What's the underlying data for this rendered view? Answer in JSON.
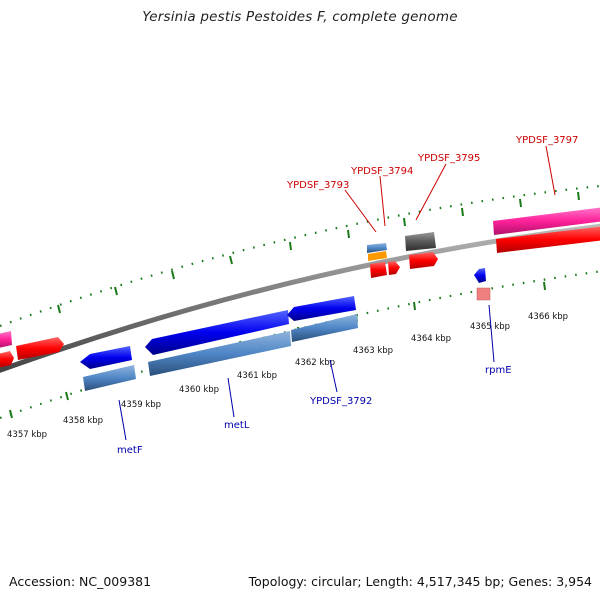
{
  "title": "Yersinia pestis Pestoides F, complete genome",
  "footer": {
    "accession": "Accession: NC_009381",
    "summary": "Topology: circular; Length: 4,517,345 bp; Genes: 3,954"
  },
  "scale_labels": {
    "inner": [
      "4357 kbp",
      "4358 kbp",
      "4359 kbp",
      "4360 kbp",
      "4361 kbp",
      "4362 kbp",
      "4363 kbp",
      "4364 kbp",
      "4365 kbp",
      "4366 kbp"
    ]
  },
  "gene_labels": {
    "forward": [
      "YPDSF_3793",
      "YPDSF_3794",
      "YPDSF_3795",
      "YPDSF_3797"
    ],
    "reverse": [
      "metF",
      "metL",
      "YPDSF_3792",
      "rpmE"
    ]
  },
  "colors": {
    "backbone": "#7a7a7a",
    "forward_cds": "#ff0000",
    "forward_gene": "#ff33aa",
    "reverse_cds": "#0000ee",
    "reverse_gene": "#4f86c6",
    "tick": "#1a7a1a",
    "orange": "#ff9900",
    "gray_gene": "#555555",
    "pink_light": "#f08080"
  }
}
